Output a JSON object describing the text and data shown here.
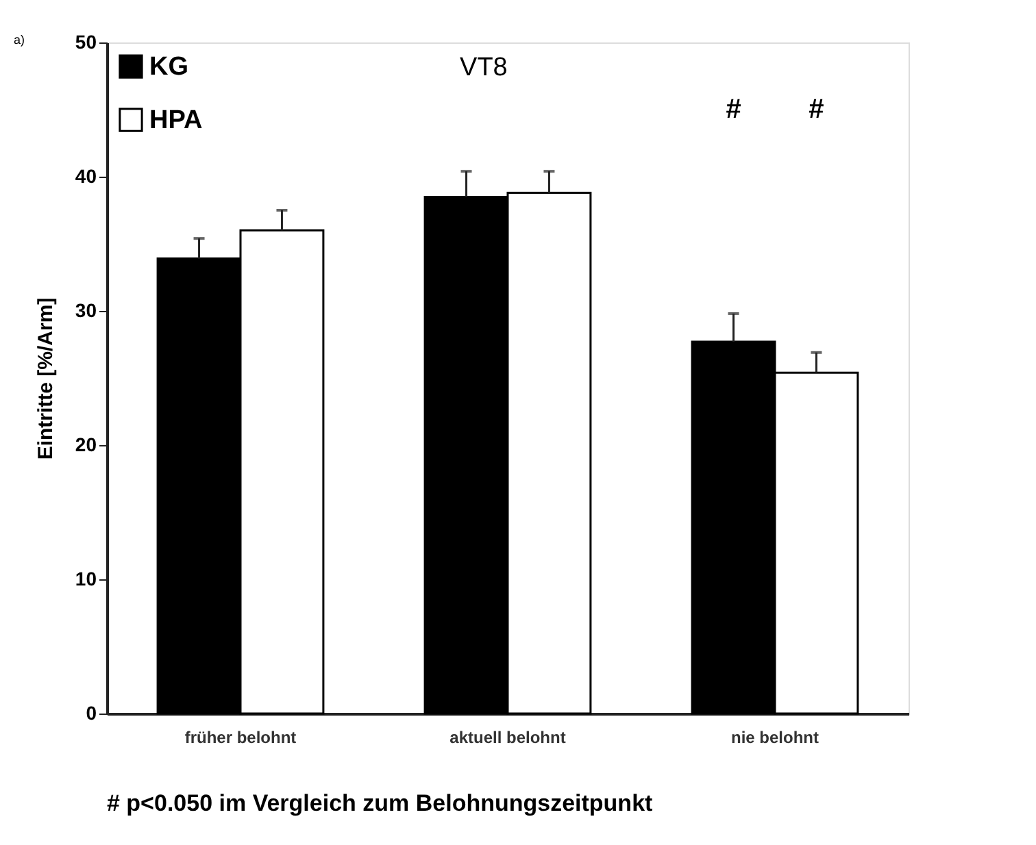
{
  "chart_data": {
    "type": "bar",
    "title": "VT8",
    "ylabel": "Eintritte [%/Arm]",
    "categories": [
      "früher belohnt",
      "aktuell belohnt",
      "nie belohnt"
    ],
    "series": [
      {
        "name": "KG",
        "color": "#000000",
        "values": [
          33.9,
          38.5,
          27.7
        ],
        "errors": [
          1.5,
          1.9,
          2.1
        ]
      },
      {
        "name": "HPA",
        "color": "#ffffff",
        "values": [
          36.0,
          38.8,
          25.4
        ],
        "errors": [
          1.5,
          1.6,
          1.5
        ]
      }
    ],
    "ylim": [
      0,
      50
    ],
    "yticks": [
      0,
      10,
      20,
      30,
      40,
      50
    ],
    "grid": false,
    "legend": "top left",
    "annotations": [
      "a)",
      "#",
      "#",
      "# p<0.050 im Vergleich zum Belohnungszeitpunkt"
    ]
  }
}
